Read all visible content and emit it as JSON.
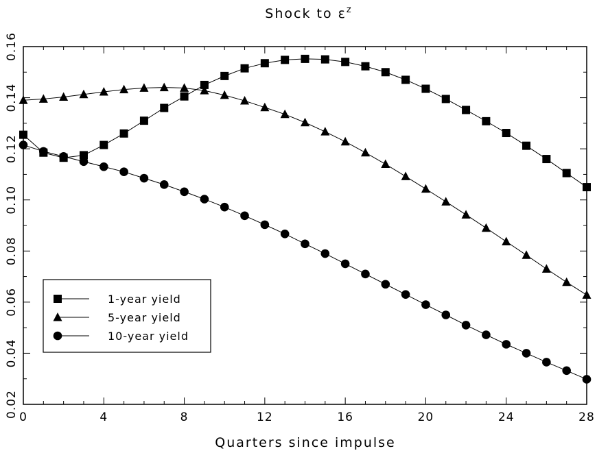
{
  "chart_data": {
    "type": "line",
    "title": "Shock to ε",
    "title_superscript": "z",
    "xlabel": "Quarters since impulse",
    "ylabel": "",
    "xlim": [
      0,
      28
    ],
    "ylim": [
      0.02,
      0.16
    ],
    "x_ticks": [
      "0",
      "4",
      "8",
      "12",
      "16",
      "20",
      "24",
      "28"
    ],
    "y_ticks": [
      "0.02",
      "0.04",
      "0.06",
      "0.08",
      "0.10",
      "0.12",
      "0.14",
      "0.16"
    ],
    "grid": false,
    "legend_position": "lower-left",
    "x": [
      0,
      1,
      2,
      3,
      4,
      5,
      6,
      7,
      8,
      9,
      10,
      11,
      12,
      13,
      14,
      15,
      16,
      17,
      18,
      19,
      20,
      21,
      22,
      23,
      24,
      25,
      26,
      27,
      28
    ],
    "series": [
      {
        "name": "1-year yield",
        "marker": "square",
        "values": [
          0.1255,
          0.1185,
          0.1165,
          0.1175,
          0.1215,
          0.126,
          0.131,
          0.136,
          0.1405,
          0.145,
          0.1485,
          0.1515,
          0.1535,
          0.1548,
          0.1552,
          0.155,
          0.154,
          0.1523,
          0.15,
          0.147,
          0.1435,
          0.1395,
          0.1352,
          0.1308,
          0.1262,
          0.1212,
          0.116,
          0.1105,
          0.105
        ]
      },
      {
        "name": "5-year yield",
        "marker": "triangle",
        "values": [
          0.139,
          0.1395,
          0.1403,
          0.1413,
          0.1423,
          0.1432,
          0.1438,
          0.144,
          0.1438,
          0.1428,
          0.141,
          0.1388,
          0.1362,
          0.1335,
          0.1303,
          0.1267,
          0.1228,
          0.1185,
          0.114,
          0.1092,
          0.1043,
          0.0993,
          0.0942,
          0.089,
          0.0837,
          0.0784,
          0.073,
          0.0678,
          0.0628
        ]
      },
      {
        "name": "10-year yield",
        "marker": "circle",
        "values": [
          0.1215,
          0.119,
          0.117,
          0.115,
          0.113,
          0.111,
          0.1085,
          0.106,
          0.1032,
          0.1003,
          0.0972,
          0.0938,
          0.0903,
          0.0867,
          0.0828,
          0.079,
          0.075,
          0.071,
          0.067,
          0.063,
          0.059,
          0.055,
          0.051,
          0.0472,
          0.0435,
          0.04,
          0.0365,
          0.0332,
          0.0298
        ]
      }
    ]
  }
}
